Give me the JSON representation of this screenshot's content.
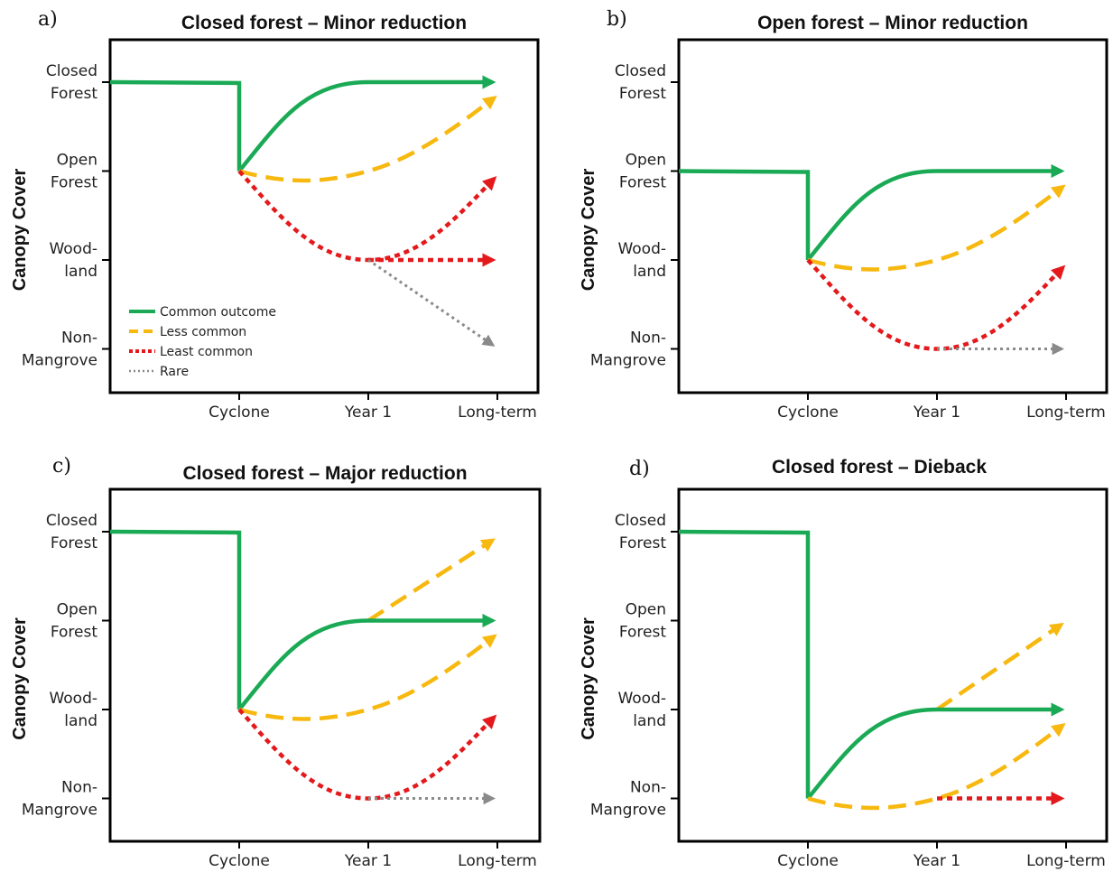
{
  "y_levels": [
    "Closed\nForest",
    "Open\nForest",
    "Wood-\nland",
    "Non-\nMangrove"
  ],
  "x_labels": [
    "Cyclone",
    "Year 1",
    "Long-term"
  ],
  "ylabel": "Canopy Cover",
  "styles": {
    "common": {
      "color": "#1aaa55"
    },
    "less": {
      "color": "#f7b80f"
    },
    "least": {
      "color": "#e3191c"
    },
    "rare": {
      "color": "#8a8a8a"
    }
  },
  "legend": [
    {
      "key": "common",
      "label": "Common outcome"
    },
    {
      "key": "less",
      "label": "Less common"
    },
    {
      "key": "least",
      "label": "Least common"
    },
    {
      "key": "rare",
      "label": "Rare"
    }
  ],
  "panels": [
    {
      "letter": "a)",
      "title": "Closed forest – Minor reduction",
      "show_legend": true,
      "pre_level": 0,
      "post_level": 1,
      "paths": [
        {
          "style": "common",
          "points": [
            [
              1,
              1
            ],
            [
              2,
              0
            ],
            [
              3,
              0
            ]
          ],
          "curve": "up"
        },
        {
          "style": "less",
          "points": [
            [
              1,
              1
            ],
            [
              2,
              1
            ],
            [
              3,
              0.15
            ]
          ],
          "curve": "bowl"
        },
        {
          "style": "least",
          "points": [
            [
              1,
              1
            ],
            [
              2,
              2
            ],
            [
              3,
              1.05
            ]
          ],
          "curve": "down-up"
        },
        {
          "style": "least",
          "points": [
            [
              2,
              2
            ],
            [
              3,
              2
            ]
          ],
          "curve": "line"
        },
        {
          "style": "rare",
          "points": [
            [
              2,
              2
            ],
            [
              3,
              2.95
            ]
          ],
          "curve": "line"
        }
      ]
    },
    {
      "letter": "b)",
      "title": "Open forest – Minor reduction",
      "show_legend": false,
      "pre_level": 1,
      "post_level": 2,
      "paths": [
        {
          "style": "common",
          "points": [
            [
              1,
              2
            ],
            [
              2,
              1
            ],
            [
              3,
              1
            ]
          ],
          "curve": "up"
        },
        {
          "style": "less",
          "points": [
            [
              1,
              2
            ],
            [
              2,
              2
            ],
            [
              3,
              1.15
            ]
          ],
          "curve": "bowl"
        },
        {
          "style": "least",
          "points": [
            [
              1,
              2
            ],
            [
              2,
              3
            ],
            [
              3,
              2.05
            ]
          ],
          "curve": "down-up"
        },
        {
          "style": "rare",
          "points": [
            [
              2,
              3
            ],
            [
              3,
              3
            ]
          ],
          "curve": "line"
        }
      ]
    },
    {
      "letter": "c)",
      "title": "Closed forest – Major reduction",
      "show_legend": false,
      "pre_level": 0,
      "post_level": 2,
      "paths": [
        {
          "style": "less",
          "points": [
            [
              2,
              1
            ],
            [
              3,
              0.1
            ]
          ],
          "curve": "line"
        },
        {
          "style": "common",
          "points": [
            [
              1,
              2
            ],
            [
              2,
              1
            ],
            [
              3,
              1
            ]
          ],
          "curve": "up"
        },
        {
          "style": "less",
          "points": [
            [
              1,
              2
            ],
            [
              2,
              2
            ],
            [
              3,
              1.15
            ]
          ],
          "curve": "bowl"
        },
        {
          "style": "least",
          "points": [
            [
              1,
              2
            ],
            [
              2,
              3
            ],
            [
              3,
              2.05
            ]
          ],
          "curve": "down-up"
        },
        {
          "style": "rare",
          "points": [
            [
              2,
              3
            ],
            [
              3,
              3
            ]
          ],
          "curve": "line"
        }
      ]
    },
    {
      "letter": "d)",
      "title": "Closed forest – Dieback",
      "show_legend": false,
      "pre_level": 0,
      "post_level": 3,
      "paths": [
        {
          "style": "less",
          "points": [
            [
              2,
              2
            ],
            [
              3,
              1.05
            ]
          ],
          "curve": "line"
        },
        {
          "style": "common",
          "points": [
            [
              1,
              3
            ],
            [
              2,
              2
            ],
            [
              3,
              2
            ]
          ],
          "curve": "up"
        },
        {
          "style": "less",
          "points": [
            [
              1,
              3
            ],
            [
              2,
              3
            ],
            [
              3,
              2.15
            ]
          ],
          "curve": "bowl"
        },
        {
          "style": "least",
          "points": [
            [
              2,
              3
            ],
            [
              3,
              3
            ]
          ],
          "curve": "line"
        }
      ]
    }
  ]
}
